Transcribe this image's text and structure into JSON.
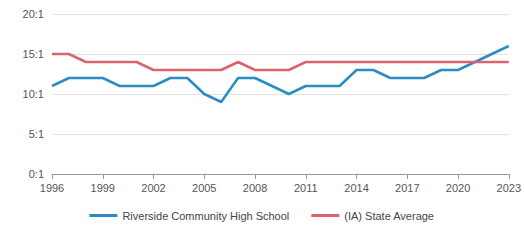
{
  "chart_data": {
    "type": "line",
    "x": [
      1996,
      1997,
      1998,
      1999,
      2000,
      2001,
      2002,
      2003,
      2004,
      2005,
      2006,
      2007,
      2008,
      2009,
      2010,
      2011,
      2012,
      2013,
      2014,
      2015,
      2016,
      2017,
      2018,
      2019,
      2020,
      2021,
      2022,
      2023
    ],
    "series": [
      {
        "name": "Riverside Community High School",
        "color": "#2b8cc4",
        "values": [
          11,
          12,
          12,
          12,
          11,
          11,
          11,
          12,
          12,
          10,
          9,
          12,
          12,
          11,
          10,
          11,
          11,
          11,
          13,
          13,
          12,
          12,
          12,
          13,
          13,
          14,
          15,
          16
        ]
      },
      {
        "name": "(IA) State Average",
        "color": "#d9646c",
        "values": [
          15,
          15,
          14,
          14,
          14,
          14,
          13,
          13,
          13,
          13,
          13,
          14,
          13,
          13,
          13,
          14,
          14,
          14,
          14,
          14,
          14,
          14,
          14,
          14,
          14,
          14,
          14,
          14
        ]
      }
    ],
    "xlim": [
      1996,
      2023
    ],
    "xticks": [
      1996,
      1999,
      2002,
      2005,
      2008,
      2011,
      2014,
      2017,
      2020,
      2023
    ],
    "ylim": [
      0,
      20
    ],
    "yticks": [
      {
        "value": 0,
        "label": "0:1"
      },
      {
        "value": 5,
        "label": "5:1"
      },
      {
        "value": 10,
        "label": "10:1"
      },
      {
        "value": 15,
        "label": "15:1"
      },
      {
        "value": 20,
        "label": "20:1"
      }
    ],
    "grid": true,
    "legend": "bottom"
  }
}
